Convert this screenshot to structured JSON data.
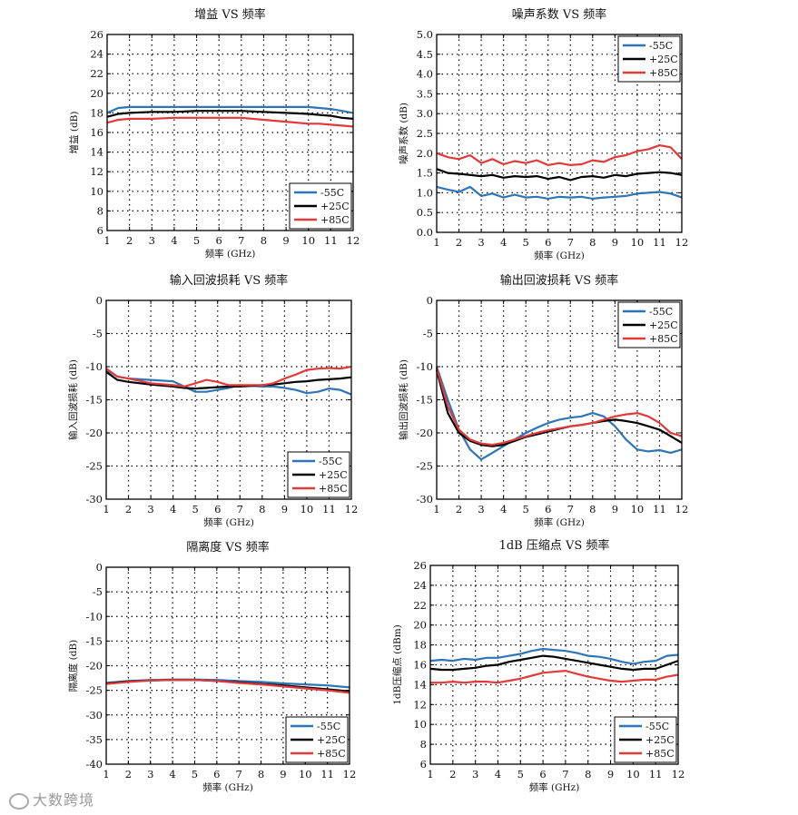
{
  "watermark": "大数跨境",
  "colors": {
    "m55": "#2e75b6",
    "p25": "#000000",
    "p85": "#e03a3a"
  },
  "chart_data": [
    {
      "type": "line",
      "title": "增益 VS 频率",
      "xlabel": "频率 (GHz)",
      "ylabel": "增益 (dB)",
      "xlim": [
        1,
        12
      ],
      "ylim": [
        6,
        26
      ],
      "xticks": [
        1,
        2,
        3,
        4,
        5,
        6,
        7,
        8,
        9,
        10,
        11,
        12
      ],
      "yticks": [
        6,
        8,
        10,
        12,
        14,
        16,
        18,
        20,
        22,
        24,
        26
      ],
      "legend": "bottom-right",
      "x": [
        1,
        1.5,
        2,
        3,
        4,
        5,
        6,
        7,
        8,
        9,
        10,
        10.5,
        11,
        11.5,
        12
      ],
      "series": [
        {
          "name": "-55C",
          "color": "#2e75b6",
          "values": [
            18.0,
            18.5,
            18.6,
            18.6,
            18.6,
            18.6,
            18.6,
            18.6,
            18.6,
            18.6,
            18.6,
            18.5,
            18.4,
            18.2,
            18.0
          ]
        },
        {
          "name": "+25C",
          "color": "#000000",
          "values": [
            17.6,
            17.9,
            18.0,
            18.1,
            18.1,
            18.2,
            18.2,
            18.2,
            18.1,
            18.0,
            17.9,
            17.8,
            17.7,
            17.5,
            17.4
          ]
        },
        {
          "name": "+85C",
          "color": "#e03a3a",
          "values": [
            17.0,
            17.3,
            17.4,
            17.4,
            17.5,
            17.5,
            17.5,
            17.5,
            17.3,
            17.1,
            16.9,
            16.9,
            16.8,
            16.7,
            16.6
          ]
        }
      ]
    },
    {
      "type": "line",
      "title": "噪声系数 VS 频率",
      "xlabel": "频率 (GHz)",
      "ylabel": "噪声系数 (dB)",
      "xlim": [
        1,
        12
      ],
      "ylim": [
        0,
        5
      ],
      "xticks": [
        1,
        2,
        3,
        4,
        5,
        6,
        7,
        8,
        9,
        10,
        11,
        12
      ],
      "yticks": [
        0.0,
        0.5,
        1.0,
        1.5,
        2.0,
        2.5,
        3.0,
        3.5,
        4.0,
        4.5,
        5.0
      ],
      "yticklabels": [
        "0.0",
        "0.5",
        "1.0",
        "1.5",
        "2.0",
        "2.5",
        "3.0",
        "3.5",
        "4.0",
        "4.5",
        "5.0"
      ],
      "legend": "top-right",
      "x": [
        1,
        1.5,
        2,
        2.5,
        3,
        3.5,
        4,
        4.5,
        5,
        5.5,
        6,
        6.5,
        7,
        7.5,
        8,
        8.5,
        9,
        9.5,
        10,
        10.5,
        11,
        11.5,
        12
      ],
      "series": [
        {
          "name": "-55C",
          "color": "#2e75b6",
          "values": [
            1.15,
            1.08,
            1.02,
            1.15,
            0.92,
            0.98,
            0.88,
            0.95,
            0.88,
            0.9,
            0.85,
            0.9,
            0.88,
            0.9,
            0.85,
            0.88,
            0.9,
            0.92,
            0.98,
            1.0,
            1.02,
            0.98,
            0.88
          ]
        },
        {
          "name": "+25C",
          "color": "#000000",
          "values": [
            1.6,
            1.5,
            1.48,
            1.45,
            1.42,
            1.45,
            1.38,
            1.42,
            1.4,
            1.42,
            1.35,
            1.4,
            1.32,
            1.4,
            1.42,
            1.38,
            1.45,
            1.42,
            1.48,
            1.5,
            1.52,
            1.5,
            1.45
          ]
        },
        {
          "name": "+85C",
          "color": "#e03a3a",
          "values": [
            2.0,
            1.9,
            1.85,
            1.95,
            1.75,
            1.85,
            1.72,
            1.8,
            1.75,
            1.82,
            1.7,
            1.75,
            1.7,
            1.72,
            1.82,
            1.78,
            1.9,
            1.95,
            2.05,
            2.1,
            2.2,
            2.15,
            1.85
          ]
        }
      ]
    },
    {
      "type": "line",
      "title": "输入回波损耗 VS 频率",
      "xlabel": "频率 (GHz)",
      "ylabel": "输入回波损耗 (dB)",
      "xlim": [
        1,
        12
      ],
      "ylim": [
        -30,
        0
      ],
      "xticks": [
        1,
        2,
        3,
        4,
        5,
        6,
        7,
        8,
        9,
        10,
        11,
        12
      ],
      "yticks": [
        -30,
        -25,
        -20,
        -15,
        -10,
        -5,
        0
      ],
      "legend": "bottom-right",
      "x": [
        1,
        1.5,
        2,
        3,
        4,
        4.5,
        5,
        5.5,
        6,
        6.5,
        7,
        7.5,
        8,
        8.5,
        9,
        9.5,
        10,
        10.5,
        11,
        11.5,
        12
      ],
      "series": [
        {
          "name": "-55C",
          "color": "#2e75b6",
          "values": [
            -10.5,
            -11.5,
            -11.8,
            -12,
            -12.2,
            -13.0,
            -13.8,
            -13.8,
            -13.5,
            -13.2,
            -12.8,
            -12.9,
            -13.0,
            -13.0,
            -13.2,
            -13.5,
            -14.0,
            -13.8,
            -13.3,
            -13.5,
            -14.2
          ]
        },
        {
          "name": "+25C",
          "color": "#000000",
          "values": [
            -10.8,
            -12.0,
            -12.3,
            -12.7,
            -13.0,
            -13.2,
            -13.3,
            -13.2,
            -13.1,
            -13.0,
            -13.0,
            -12.9,
            -12.8,
            -12.7,
            -12.5,
            -12.3,
            -12.2,
            -12.0,
            -11.9,
            -11.8,
            -11.6
          ]
        },
        {
          "name": "+85C",
          "color": "#e03a3a",
          "values": [
            -10.3,
            -11.5,
            -11.8,
            -12.5,
            -12.8,
            -13.0,
            -12.5,
            -12.0,
            -12.3,
            -12.8,
            -12.8,
            -12.8,
            -12.8,
            -12.5,
            -11.8,
            -11.2,
            -10.5,
            -10.3,
            -10.2,
            -10.3,
            -10.0
          ]
        }
      ]
    },
    {
      "type": "line",
      "title": "输出回波损耗 VS 频率",
      "xlabel": "频率 (GHz)",
      "ylabel": "输出回波损耗 (dB)",
      "xlim": [
        1,
        12
      ],
      "ylim": [
        -30,
        0
      ],
      "xticks": [
        1,
        2,
        3,
        4,
        5,
        6,
        7,
        8,
        9,
        10,
        11,
        12
      ],
      "yticks": [
        -30,
        -25,
        -20,
        -15,
        -10,
        -5,
        0
      ],
      "legend": "top-right",
      "x": [
        1,
        1.5,
        2,
        2.5,
        3,
        3.5,
        4,
        4.5,
        5,
        5.5,
        6,
        6.5,
        7,
        7.5,
        8,
        8.5,
        9,
        9.5,
        10,
        10.5,
        11,
        11.5,
        12
      ],
      "series": [
        {
          "name": "-55C",
          "color": "#2e75b6",
          "values": [
            -10.0,
            -15.0,
            -19.5,
            -22.5,
            -24.0,
            -23.0,
            -22.0,
            -21.0,
            -20.0,
            -19.2,
            -18.5,
            -18.0,
            -17.7,
            -17.5,
            -17.0,
            -17.5,
            -19.0,
            -21.0,
            -22.5,
            -22.8,
            -22.6,
            -23.0,
            -22.5
          ]
        },
        {
          "name": "+25C",
          "color": "#000000",
          "values": [
            -10.5,
            -17.0,
            -20.0,
            -21.2,
            -21.8,
            -22.0,
            -21.8,
            -21.2,
            -20.6,
            -20.2,
            -19.8,
            -19.4,
            -19.0,
            -18.8,
            -18.5,
            -18.2,
            -18.0,
            -18.2,
            -18.5,
            -19.0,
            -19.5,
            -20.5,
            -21.5
          ]
        },
        {
          "name": "+85C",
          "color": "#e03a3a",
          "values": [
            -10.2,
            -16.0,
            -19.5,
            -21.0,
            -21.6,
            -21.8,
            -21.5,
            -21.0,
            -20.5,
            -20.0,
            -19.6,
            -19.3,
            -19.0,
            -18.8,
            -18.5,
            -18.0,
            -17.5,
            -17.2,
            -17.0,
            -17.5,
            -18.5,
            -20.0,
            -20.5
          ]
        }
      ]
    },
    {
      "type": "line",
      "title": "隔离度 VS 频率",
      "xlabel": "频率 (GHz)",
      "ylabel": "隔离度 (dB)",
      "xlim": [
        1,
        12
      ],
      "ylim": [
        -40,
        0
      ],
      "xticks": [
        1,
        2,
        3,
        4,
        5,
        6,
        7,
        8,
        9,
        10,
        11,
        12
      ],
      "yticks": [
        -40,
        -35,
        -30,
        -25,
        -20,
        -15,
        -10,
        -5,
        0
      ],
      "legend": "bottom-right",
      "x": [
        1,
        2,
        3,
        4,
        5,
        6,
        7,
        8,
        9,
        10,
        11,
        12
      ],
      "series": [
        {
          "name": "-55C",
          "color": "#2e75b6",
          "values": [
            -23.5,
            -23.1,
            -22.9,
            -22.8,
            -22.8,
            -22.9,
            -23.1,
            -23.3,
            -23.6,
            -23.8,
            -24.0,
            -24.4
          ]
        },
        {
          "name": "+25C",
          "color": "#000000",
          "values": [
            -23.6,
            -23.2,
            -23.0,
            -22.9,
            -22.9,
            -23.1,
            -23.4,
            -23.7,
            -24.0,
            -24.4,
            -24.8,
            -25.2
          ]
        },
        {
          "name": "+85C",
          "color": "#e03a3a",
          "values": [
            -23.7,
            -23.3,
            -23.0,
            -22.9,
            -22.9,
            -23.1,
            -23.5,
            -23.8,
            -24.2,
            -24.6,
            -25.0,
            -25.5
          ]
        }
      ]
    },
    {
      "type": "line",
      "title": "1dB 压缩点 VS 频率",
      "xlabel": "频率 (GHz)",
      "ylabel": "1dB压缩点 (dBm)",
      "xlim": [
        1,
        12
      ],
      "ylim": [
        6,
        26
      ],
      "xticks": [
        1,
        2,
        3,
        4,
        5,
        6,
        7,
        8,
        9,
        10,
        11,
        12
      ],
      "yticks": [
        6,
        8,
        10,
        12,
        14,
        16,
        18,
        20,
        22,
        24,
        26
      ],
      "legend": "bottom-right",
      "x": [
        1,
        1.5,
        2,
        2.5,
        3,
        3.5,
        4,
        4.5,
        5,
        5.5,
        6,
        6.5,
        7,
        7.5,
        8,
        8.5,
        9,
        9.5,
        10,
        10.5,
        11,
        11.5,
        12
      ],
      "series": [
        {
          "name": "-55C",
          "color": "#2e75b6",
          "values": [
            16.4,
            16.5,
            16.4,
            16.6,
            16.5,
            16.7,
            16.7,
            16.9,
            17.1,
            17.4,
            17.6,
            17.5,
            17.4,
            17.2,
            16.9,
            16.8,
            16.6,
            16.3,
            16.1,
            16.3,
            16.4,
            16.9,
            17.0
          ]
        },
        {
          "name": "+25C",
          "color": "#000000",
          "values": [
            15.6,
            15.5,
            15.5,
            15.6,
            15.7,
            15.9,
            16.0,
            16.3,
            16.5,
            16.7,
            16.9,
            16.8,
            16.6,
            16.4,
            16.2,
            16.0,
            15.8,
            15.6,
            15.5,
            15.6,
            15.6,
            16.0,
            16.4
          ]
        },
        {
          "name": "+85C",
          "color": "#e03a3a",
          "values": [
            14.2,
            14.2,
            14.3,
            14.2,
            14.3,
            14.3,
            14.2,
            14.4,
            14.6,
            14.9,
            15.2,
            15.3,
            15.4,
            15.1,
            14.8,
            14.6,
            14.4,
            14.3,
            14.4,
            14.5,
            14.5,
            14.8,
            15.0
          ]
        }
      ]
    }
  ]
}
